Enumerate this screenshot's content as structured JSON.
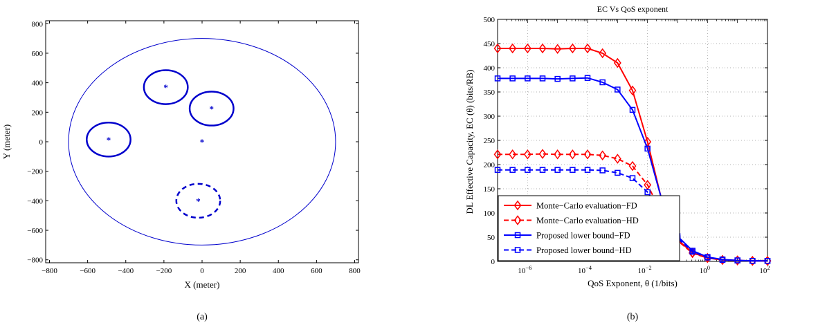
{
  "chart_data": [
    {
      "type": "scatter",
      "panel_label": "(a)",
      "xlabel": "X (meter)",
      "ylabel": "Y (meter)",
      "xlim": [
        -820,
        820
      ],
      "ylim": [
        -820,
        820
      ],
      "xticks": [
        -800,
        -600,
        -400,
        -200,
        0,
        200,
        400,
        600,
        800
      ],
      "yticks": [
        -800,
        -600,
        -400,
        -200,
        0,
        200,
        400,
        600,
        800
      ],
      "grid": false,
      "large_circle": {
        "cx": 0,
        "cy": 0,
        "r": 700
      },
      "points": [
        {
          "x": 0,
          "y": 0
        },
        {
          "x": -490,
          "y": 15
        },
        {
          "x": -190,
          "y": 370
        },
        {
          "x": 50,
          "y": 225
        },
        {
          "x": -20,
          "y": -400
        }
      ],
      "small_circles": [
        {
          "cx": -490,
          "cy": 15,
          "r": 115,
          "style": "solid"
        },
        {
          "cx": -190,
          "cy": 370,
          "r": 115,
          "style": "solid"
        },
        {
          "cx": 50,
          "cy": 225,
          "r": 115,
          "style": "solid"
        },
        {
          "cx": -20,
          "cy": -400,
          "r": 115,
          "style": "dashed"
        }
      ],
      "color": "#0000cc"
    },
    {
      "type": "line",
      "panel_label": "(b)",
      "title": "EC Vs QoS exponent",
      "xlabel": "QoS Exponent, θ (1/bits)",
      "ylabel": "DL Effective Capacity, EC (θ)  (bits/RB)",
      "xscale": "log",
      "xlim": [
        1e-07,
        100
      ],
      "ylim": [
        0,
        500
      ],
      "xticks": [
        {
          "base": "10",
          "exp": "−6",
          "value": 1e-06
        },
        {
          "base": "10",
          "exp": "−4",
          "value": 0.0001
        },
        {
          "base": "10",
          "exp": "−2",
          "value": 0.01
        },
        {
          "base": "10",
          "exp": "0",
          "value": 1
        },
        {
          "base": "10",
          "exp": "2",
          "value": 100
        }
      ],
      "yticks": [
        0,
        50,
        100,
        150,
        200,
        250,
        300,
        350,
        400,
        450,
        500
      ],
      "grid": true,
      "legend_position": "bottom-left",
      "x": [
        1e-07,
        3.16e-07,
        1e-06,
        3.16e-06,
        1e-05,
        3.16e-05,
        0.0001,
        0.000316,
        0.001,
        0.00316,
        0.01,
        0.0316,
        0.1,
        0.316,
        1,
        3.16,
        10,
        31.6,
        100
      ],
      "series": [
        {
          "name": "Monte−Carlo evaluation−FD",
          "color": "#ff0000",
          "dash": "solid",
          "marker": "diamond",
          "values": [
            440,
            440,
            440,
            440,
            439,
            440,
            440,
            430,
            410,
            353,
            247,
            120,
            45,
            18,
            7,
            3,
            2,
            1,
            1
          ]
        },
        {
          "name": "Monte−Carlo evaluation−HD",
          "color": "#ff0000",
          "dash": "dashed",
          "marker": "diamond",
          "values": [
            221,
            221,
            221,
            222,
            221,
            221,
            221,
            219,
            212,
            197,
            158,
            96,
            43,
            17,
            7,
            3,
            2,
            1,
            1
          ]
        },
        {
          "name": "Proposed lower bound−FD",
          "color": "#0000ff",
          "dash": "solid",
          "marker": "square",
          "values": [
            378,
            378,
            378,
            378,
            377,
            378,
            379,
            370,
            355,
            313,
            233,
            122,
            52,
            22,
            9,
            4,
            2,
            1,
            1
          ]
        },
        {
          "name": "Proposed lower bound−HD",
          "color": "#0000ff",
          "dash": "dashed",
          "marker": "square",
          "values": [
            189,
            189,
            189,
            189,
            189,
            189,
            189,
            188,
            183,
            172,
            143,
            94,
            48,
            20,
            8,
            3,
            2,
            1,
            1
          ]
        }
      ]
    }
  ]
}
